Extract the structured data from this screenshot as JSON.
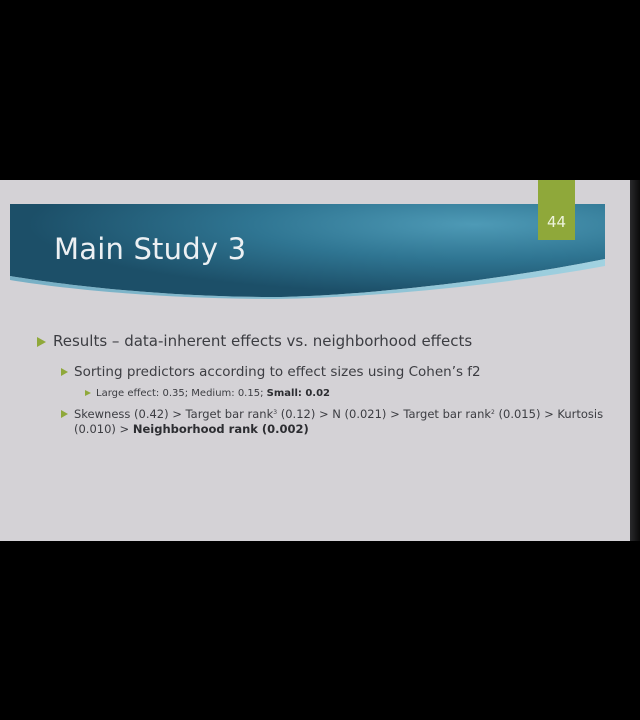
{
  "slide": {
    "title": "Main Study 3",
    "number": "44",
    "bullets": {
      "results": "Results – data-inherent effects vs. neighborhood effects",
      "sorting": "Sorting predictors according to effect sizes using Cohen’s f2",
      "thresholds": {
        "large_medium": "Large effect: 0.35; Medium: 0.15; ",
        "small": "Small: 0.02"
      },
      "ranking": {
        "part1": "Skewness (0.42) > Target bar rank",
        "sup1": "3",
        "part2": " (0.12) > N (0.021) > Target bar rank",
        "sup2": "2",
        "part3": " (0.015) > Kurtosis",
        "part4": "(0.010) > ",
        "neighborhood": "Neighborhood rank (0.002)"
      }
    }
  },
  "colors": {
    "background": "#000000",
    "slide": "#d4d2d6",
    "banner_dark": "#1f5f7a",
    "banner_light": "#3a8aa6",
    "accent": "#8fa83a",
    "text": "#3c3d42"
  }
}
